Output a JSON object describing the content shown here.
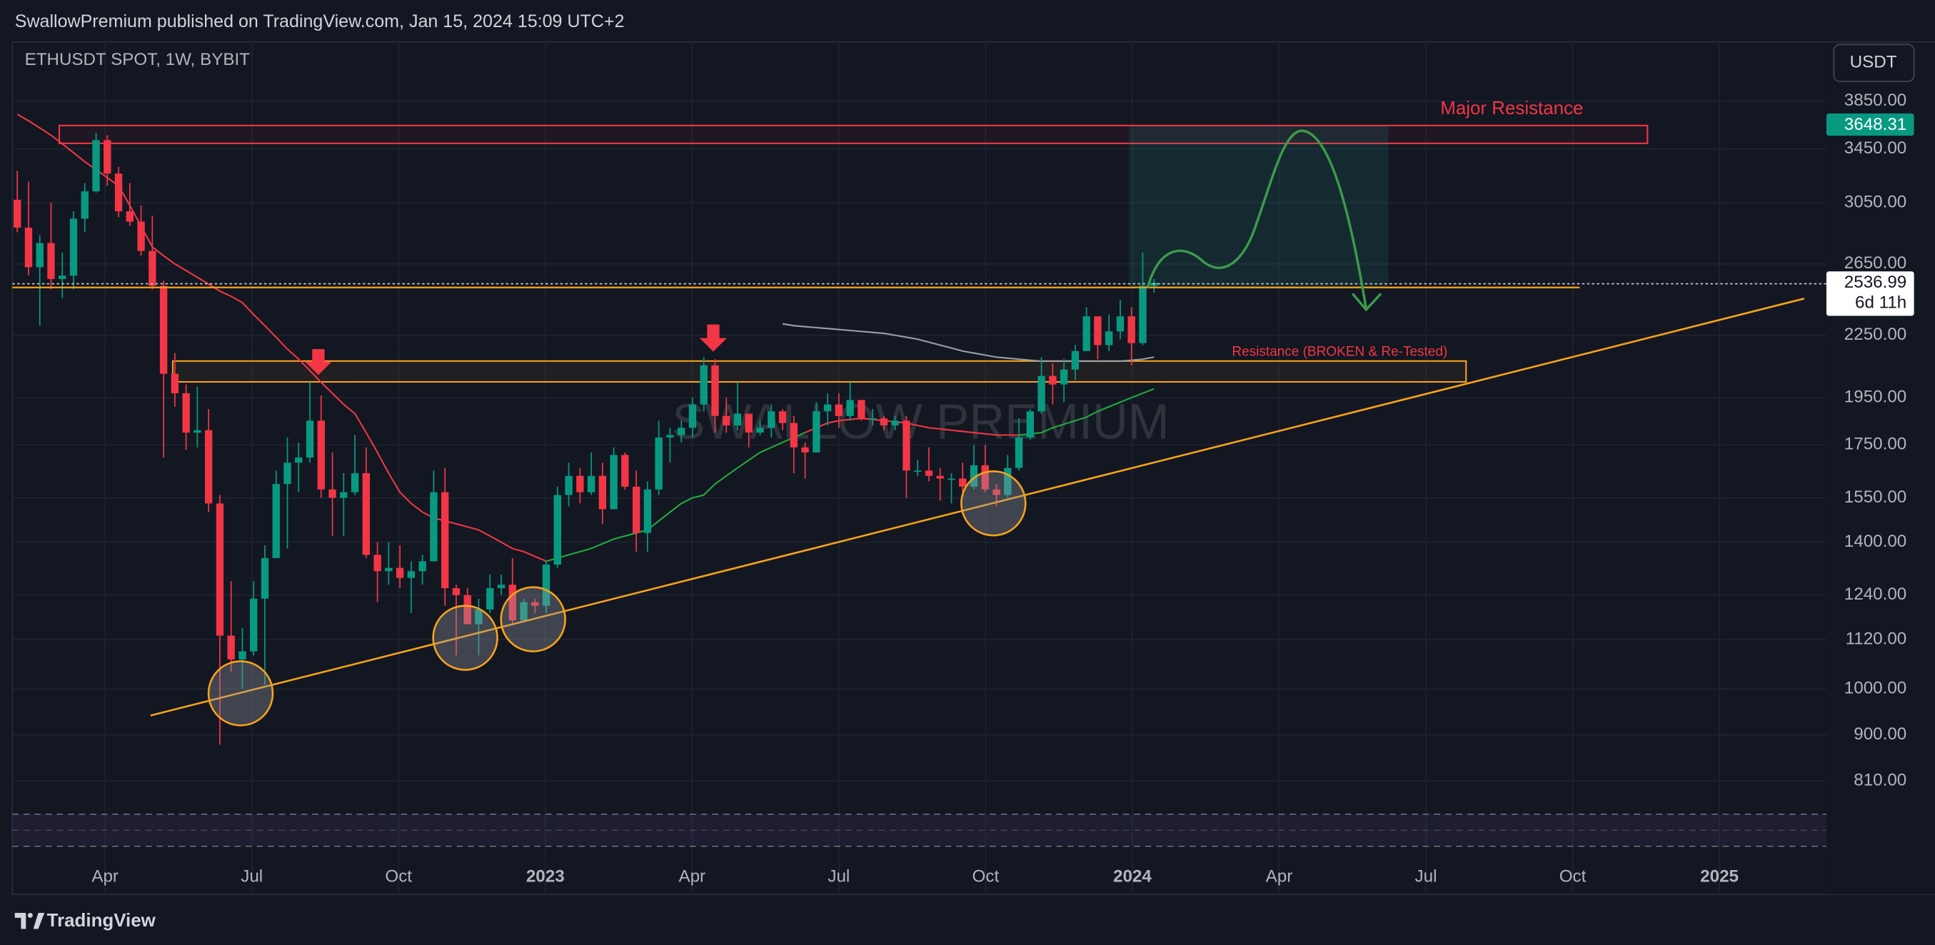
{
  "header": {
    "publisher_line": "SwallowPremium published on TradingView.com, Jan 15, 2024 15:09 UTC+2",
    "symbol": "ETHUSDT SPOT, 1W, BYBIT",
    "currency_button": "USDT"
  },
  "chart_data": {
    "type": "candlestick",
    "log_scale": true,
    "grid": true,
    "watermark": "SWALLOW PREMIUM",
    "up_color": "#089981",
    "down_color": "#f23645",
    "open": [
      3070,
      2880,
      2630,
      2780,
      2560,
      2580,
      2940,
      3130,
      3520,
      3260,
      2990,
      2920,
      2730,
      2520,
      2060,
      1970,
      1800,
      1810,
      1530,
      1130,
      1070,
      1090,
      1230,
      1350,
      1600,
      1680,
      1700,
      1850,
      1580,
      1550,
      1570,
      1640,
      1360,
      1310,
      1320,
      1290,
      1310,
      1340,
      1570,
      1260,
      1240,
      1160,
      1200,
      1260,
      1270,
      1170,
      1220,
      1210,
      1330,
      1560,
      1630,
      1570,
      1630,
      1510,
      1710,
      1590,
      1430,
      1580,
      1780,
      1790,
      1820,
      1920,
      2100,
      1870,
      1830,
      1880,
      1800,
      1820,
      1890,
      1840,
      1740,
      1720,
      1890,
      1920,
      1870,
      1940,
      1860,
      1860,
      1830,
      1850,
      1650,
      1650,
      1630,
      1620,
      1620,
      1590,
      1670,
      1580,
      1560,
      1660,
      1780,
      1890,
      2050,
      2010,
      2080,
      2170,
      2350,
      2200,
      2270,
      2350,
      2210,
      2520
    ],
    "high": [
      3280,
      3200,
      2830,
      3050,
      2720,
      2990,
      3190,
      3580,
      3560,
      3310,
      3190,
      3030,
      2960,
      2550,
      2160,
      2010,
      2000,
      1900,
      1560,
      1280,
      1150,
      1280,
      1390,
      1650,
      1780,
      1760,
      2020,
      1960,
      1720,
      1640,
      1790,
      1740,
      1400,
      1400,
      1390,
      1340,
      1360,
      1650,
      1660,
      1270,
      1260,
      1230,
      1300,
      1300,
      1350,
      1230,
      1230,
      1340,
      1590,
      1680,
      1660,
      1720,
      1680,
      1740,
      1720,
      1650,
      1610,
      1850,
      1820,
      1850,
      1950,
      2140,
      2130,
      1950,
      2020,
      1880,
      1850,
      1920,
      1900,
      1870,
      1760,
      1930,
      1970,
      1970,
      2020,
      1940,
      1900,
      1870,
      1870,
      1870,
      1690,
      1740,
      1660,
      1640,
      1680,
      1750,
      1750,
      1600,
      1710,
      1860,
      1900,
      2140,
      2110,
      2130,
      2200,
      2400,
      2350,
      2360,
      2440,
      2400,
      2720,
      2560
    ],
    "low": [
      2850,
      2580,
      2300,
      2500,
      2450,
      2500,
      2850,
      3120,
      3170,
      2950,
      2890,
      2700,
      2500,
      1700,
      1910,
      1730,
      1740,
      1500,
      880,
      1040,
      1000,
      1080,
      1010,
      1350,
      1380,
      1570,
      1680,
      1550,
      1420,
      1420,
      1560,
      1350,
      1220,
      1270,
      1260,
      1190,
      1270,
      1340,
      1210,
      1080,
      1160,
      1080,
      1190,
      1240,
      1160,
      1170,
      1190,
      1190,
      1320,
      1520,
      1530,
      1560,
      1460,
      1510,
      1580,
      1370,
      1370,
      1560,
      1680,
      1760,
      1780,
      1890,
      1800,
      1800,
      1810,
      1740,
      1790,
      1780,
      1810,
      1640,
      1620,
      1720,
      1830,
      1820,
      1850,
      1850,
      1830,
      1810,
      1810,
      1550,
      1630,
      1610,
      1540,
      1530,
      1570,
      1580,
      1570,
      1520,
      1550,
      1650,
      1770,
      1880,
      1920,
      1930,
      2030,
      2170,
      2130,
      2170,
      2230,
      2100,
      2200,
      2480
    ],
    "close": [
      2880,
      2630,
      2780,
      2560,
      2580,
      2940,
      3130,
      3520,
      3260,
      2990,
      2920,
      2730,
      2520,
      2060,
      1970,
      1800,
      1810,
      1530,
      1130,
      1070,
      1090,
      1230,
      1350,
      1600,
      1680,
      1700,
      1850,
      1580,
      1550,
      1570,
      1640,
      1360,
      1310,
      1320,
      1290,
      1310,
      1340,
      1570,
      1260,
      1240,
      1160,
      1200,
      1260,
      1270,
      1170,
      1220,
      1210,
      1330,
      1560,
      1630,
      1570,
      1630,
      1510,
      1710,
      1590,
      1430,
      1580,
      1780,
      1790,
      1820,
      1920,
      2100,
      1870,
      1830,
      1880,
      1800,
      1820,
      1890,
      1840,
      1740,
      1720,
      1890,
      1920,
      1870,
      1940,
      1860,
      1860,
      1830,
      1850,
      1650,
      1650,
      1630,
      1620,
      1620,
      1590,
      1670,
      1580,
      1560,
      1660,
      1780,
      1890,
      2050,
      2010,
      2080,
      2170,
      2350,
      2200,
      2270,
      2350,
      2210,
      2520,
      2536.99
    ],
    "series": [
      {
        "color": "#f23645",
        "values": [
          3735,
          3680,
          3620,
          3560,
          3490,
          3420,
          3350,
          3290,
          3230,
          3170,
          3030,
          2890,
          2755,
          2700,
          2650,
          2610,
          2570,
          2530,
          2490,
          2460,
          2425,
          2360,
          2300,
          2240,
          2180,
          2130,
          2075,
          2020,
          1970,
          1920,
          1880,
          1800,
          1720,
          1640,
          1570,
          1530,
          1500,
          1480,
          1470,
          1460,
          1450,
          1440,
          1420,
          1400,
          1380,
          1370,
          1355,
          1340,
          null,
          null,
          null,
          null,
          null,
          null,
          null,
          null,
          null,
          null,
          null,
          null,
          null,
          null,
          null,
          null,
          null,
          null,
          null,
          null,
          null,
          null,
          1800,
          1820,
          1840,
          1850,
          1855,
          1860,
          1855,
          1850,
          1845,
          1840,
          1830,
          1820,
          1815,
          1810,
          1805,
          1800,
          1795,
          1790,
          1790,
          1790,
          null,
          null,
          null,
          null,
          null,
          null,
          null,
          null,
          null,
          null,
          null,
          null
        ]
      },
      {
        "color": "#22ab3c",
        "values": [
          null,
          null,
          null,
          null,
          null,
          null,
          null,
          null,
          null,
          null,
          null,
          null,
          null,
          null,
          null,
          null,
          null,
          null,
          null,
          null,
          null,
          null,
          null,
          null,
          null,
          null,
          null,
          null,
          null,
          null,
          null,
          null,
          null,
          null,
          null,
          null,
          null,
          null,
          null,
          null,
          null,
          null,
          null,
          null,
          null,
          null,
          null,
          1340,
          1350,
          1360,
          1370,
          1380,
          1395,
          1410,
          1420,
          1430,
          1440,
          1470,
          1500,
          1530,
          1550,
          1560,
          1600,
          1630,
          1660,
          1690,
          1720,
          1740,
          1760,
          1780,
          1800,
          null,
          null,
          null,
          null,
          null,
          null,
          null,
          null,
          null,
          null,
          null,
          null,
          null,
          null,
          null,
          null,
          null,
          null,
          1790,
          1795,
          1800,
          1820,
          1835,
          1850,
          1865,
          1890,
          1910,
          1930,
          1950,
          1970,
          1990
        ]
      },
      {
        "color": "#9aa0aa",
        "values": [
          null,
          null,
          null,
          null,
          null,
          null,
          null,
          null,
          null,
          null,
          null,
          null,
          null,
          null,
          null,
          null,
          null,
          null,
          null,
          null,
          null,
          null,
          null,
          null,
          null,
          null,
          null,
          null,
          null,
          null,
          null,
          null,
          null,
          null,
          null,
          null,
          null,
          null,
          null,
          null,
          null,
          null,
          null,
          null,
          null,
          null,
          null,
          null,
          null,
          null,
          null,
          null,
          null,
          null,
          null,
          null,
          null,
          null,
          null,
          null,
          null,
          null,
          null,
          null,
          null,
          null,
          null,
          null,
          2310,
          2300,
          2295,
          2290,
          2285,
          2280,
          2275,
          2270,
          2265,
          2260,
          2250,
          2240,
          2230,
          2215,
          2200,
          2185,
          2170,
          2160,
          2150,
          2140,
          2135,
          2130,
          2125,
          2120,
          2120,
          2120,
          2120,
          2120,
          2120,
          2120,
          2120,
          2125,
          2130,
          2140
        ]
      }
    ],
    "zones": [
      {
        "label": "Major Resistance",
        "low": 3494,
        "high": 3640,
        "color": "#f23645"
      },
      {
        "label": "Resistance (BROKEN & Re-Tested)",
        "low": 2022,
        "high": 2121,
        "color": "#f7a21b"
      }
    ],
    "xlabels": [
      "Apr",
      "Jul",
      "Oct",
      "2023",
      "Apr",
      "Jul",
      "Oct",
      "2024",
      "Apr",
      "Jul",
      "Oct",
      "2025"
    ],
    "ylim": [
      761,
      4396
    ],
    "yticks": [
      {
        "value": 810,
        "label": "810.00"
      },
      {
        "value": 900,
        "label": "900.00"
      },
      {
        "value": 1000,
        "label": "1000.00"
      },
      {
        "value": 1120,
        "label": "1120.00"
      },
      {
        "value": 1240,
        "label": "1240.00"
      },
      {
        "value": 1400,
        "label": "1400.00"
      },
      {
        "value": 1550,
        "label": "1550.00"
      },
      {
        "value": 1750,
        "label": "1750.00"
      },
      {
        "value": 1950,
        "label": "1950.00"
      },
      {
        "value": 2250,
        "label": "2250.00"
      },
      {
        "value": 2650,
        "label": "2650.00"
      },
      {
        "value": 3050,
        "label": "3050.00"
      },
      {
        "value": 3450,
        "label": "3450.00"
      },
      {
        "value": 3850,
        "label": "3850.00"
      }
    ],
    "marker_price": 3648.31,
    "countdown": "6d 11h"
  },
  "footer": {
    "brand": "TradingView"
  }
}
